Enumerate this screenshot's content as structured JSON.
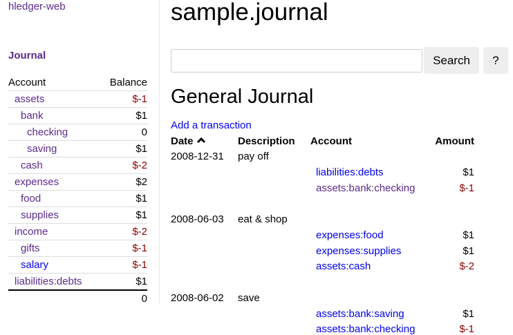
{
  "sidebar": {
    "app_name": "hledger-web",
    "journal_link": "Journal",
    "headers": {
      "account": "Account",
      "balance": "Balance"
    },
    "accounts": [
      {
        "name": "assets",
        "depth": 0,
        "balance": "$-1",
        "negative": true,
        "visited": true
      },
      {
        "name": "bank",
        "depth": 1,
        "balance": "$1",
        "negative": false,
        "visited": true
      },
      {
        "name": "checking",
        "depth": 2,
        "balance": "0",
        "negative": false,
        "visited": true
      },
      {
        "name": "saving",
        "depth": 2,
        "balance": "$1",
        "negative": false,
        "visited": true
      },
      {
        "name": "cash",
        "depth": 1,
        "balance": "$-2",
        "negative": true,
        "visited": true
      },
      {
        "name": "expenses",
        "depth": 0,
        "balance": "$2",
        "negative": false,
        "visited": true
      },
      {
        "name": "food",
        "depth": 1,
        "balance": "$1",
        "negative": false,
        "visited": true
      },
      {
        "name": "supplies",
        "depth": 1,
        "balance": "$1",
        "negative": false,
        "visited": true
      },
      {
        "name": "income",
        "depth": 0,
        "balance": "$-2",
        "negative": true,
        "visited": true
      },
      {
        "name": "gifts",
        "depth": 1,
        "balance": "$-1",
        "negative": true,
        "visited": true
      },
      {
        "name": "salary",
        "depth": 1,
        "balance": "$-1",
        "negative": true,
        "visited": false
      },
      {
        "name": "liabilities:debts",
        "depth": 0,
        "balance": "$1",
        "negative": false,
        "visited": true
      }
    ],
    "total": "0"
  },
  "main": {
    "title": "sample.journal",
    "search": {
      "value": "",
      "placeholder": "",
      "button": "Search",
      "help": "?"
    },
    "heading": "General Journal",
    "add_link": "Add a transaction",
    "columns": {
      "date": "Date",
      "description": "Description",
      "account": "Account",
      "amount": "Amount"
    },
    "sort_icon": "chevron-up-icon",
    "transactions": [
      {
        "date": "2008-12-31",
        "description": "pay off",
        "postings": [
          {
            "account": "liabilities:debts",
            "amount": "$1",
            "negative": false,
            "visited": false
          },
          {
            "account": "assets:bank:checking",
            "amount": "$-1",
            "negative": true,
            "visited": true
          }
        ]
      },
      {
        "date": "2008-06-03",
        "description": "eat & shop",
        "postings": [
          {
            "account": "expenses:food",
            "amount": "$1",
            "negative": false,
            "visited": false
          },
          {
            "account": "expenses:supplies",
            "amount": "$1",
            "negative": false,
            "visited": false
          },
          {
            "account": "assets:cash",
            "amount": "$-2",
            "negative": true,
            "visited": false
          }
        ]
      },
      {
        "date": "2008-06-02",
        "description": "save",
        "postings": [
          {
            "account": "assets:bank:saving",
            "amount": "$1",
            "negative": false,
            "visited": false
          },
          {
            "account": "assets:bank:checking",
            "amount": "$-1",
            "negative": true,
            "visited": false
          }
        ]
      }
    ]
  },
  "colors": {
    "link": "#0000ee",
    "visited": "#5b2a8c",
    "negative": "#8b0000"
  }
}
